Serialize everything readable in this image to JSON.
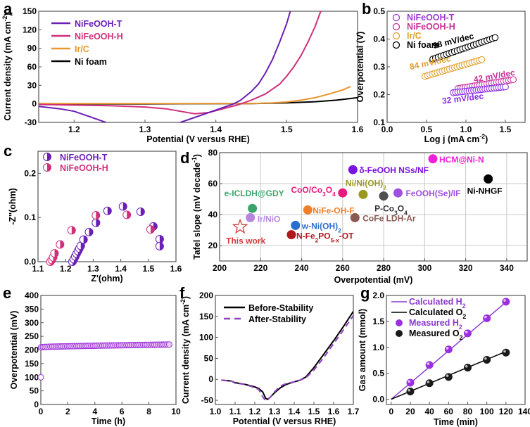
{
  "chart_data": [
    {
      "panel": "a",
      "type": "line",
      "xlabel": "Potential (V versus RHE)",
      "ylabel": "Current density (mA cm-2)",
      "xlim": [
        1.15,
        1.6
      ],
      "ylim": [
        -30,
        150
      ],
      "xticks": [
        "1.2",
        "1.3",
        "1.4",
        "1.5",
        "1.6"
      ],
      "yticks": [
        "-30",
        "0",
        "30",
        "60",
        "90",
        "120",
        "150"
      ],
      "legend": "top-left",
      "series": [
        {
          "name": "NiFeOOH-T",
          "color": "#6a1fb5",
          "x": [
            1.15,
            1.18,
            1.2,
            1.22,
            1.245,
            1.27,
            1.35,
            1.37,
            1.39,
            1.41,
            1.425,
            1.435,
            1.45,
            1.46,
            1.47,
            1.48,
            1.49,
            1.5,
            1.505
          ],
          "y": [
            -4,
            -8,
            -12,
            -20,
            -30,
            -45,
            -30,
            -22,
            -14,
            -6,
            0,
            6,
            20,
            32,
            50,
            72,
            100,
            130,
            150
          ]
        },
        {
          "name": "NiFeOOH-H",
          "color": "#d0307a",
          "x": [
            1.15,
            1.2,
            1.25,
            1.3,
            1.33,
            1.35,
            1.37,
            1.39,
            1.41,
            1.43,
            1.45,
            1.47,
            1.49,
            1.5,
            1.51,
            1.52,
            1.53,
            1.54,
            1.548
          ],
          "y": [
            -1,
            -2,
            -3,
            -5,
            -8,
            -12,
            -16,
            -14,
            -8,
            -2,
            6,
            16,
            32,
            45,
            60,
            78,
            100,
            125,
            150
          ]
        },
        {
          "name": "Ir/C",
          "color": "#e8962e",
          "x": [
            1.15,
            1.3,
            1.45,
            1.48,
            1.5,
            1.52,
            1.54,
            1.56,
            1.58,
            1.59
          ],
          "y": [
            0.5,
            0.5,
            0.5,
            1.5,
            3,
            6,
            10,
            16,
            23,
            28
          ]
        },
        {
          "name": "Ni foam",
          "color": "#000000",
          "x": [
            1.15,
            1.3,
            1.45,
            1.5,
            1.54,
            1.57,
            1.6
          ],
          "y": [
            0,
            0,
            0.5,
            1.5,
            3.5,
            6,
            10
          ]
        }
      ]
    },
    {
      "panel": "b",
      "type": "scatter",
      "xlabel": "Log j (mA cm-2)",
      "ylabel": "Overpotential (V)",
      "xlim": [
        0.0,
        1.75
      ],
      "ylim": [
        0.1,
        0.5
      ],
      "xticks": [
        "0.0",
        "0.5",
        "1.0",
        "1.5"
      ],
      "yticks": [
        "0.1",
        "0.2",
        "0.3",
        "0.4",
        "0.5"
      ],
      "legend": "top-left",
      "series": [
        {
          "name": "NiFeOOH-T",
          "color": "#8a2be2",
          "x_range": [
            0.84,
            1.5
          ],
          "y_range": [
            0.207,
            0.228
          ],
          "slope_label": "32 mV/dec"
        },
        {
          "name": "NiFeOOH-H",
          "color": "#c8309a",
          "x_range": [
            0.9,
            1.6
          ],
          "y_range": [
            0.222,
            0.254
          ],
          "slope_label": "42 mV/dec"
        },
        {
          "name": "Ir/C",
          "color": "#e0a030",
          "x_range": [
            0.48,
            1.2
          ],
          "y_range": [
            0.266,
            0.326
          ],
          "slope_label": "84 mV/dec"
        },
        {
          "name": "Ni foam",
          "color": "#000000",
          "x_range": [
            0.58,
            1.37
          ],
          "y_range": [
            0.328,
            0.405
          ],
          "slope_label": "98 mV/dec"
        }
      ]
    },
    {
      "panel": "c",
      "type": "scatter",
      "xlabel": "Z'(ohm)",
      "ylabel": "-Z''(ohm)",
      "xlim": [
        1.1,
        1.6
      ],
      "ylim": [
        0.0,
        0.25
      ],
      "xticks": [
        "1.1",
        "1.2",
        "1.3",
        "1.4",
        "1.5",
        "1.6"
      ],
      "yticks": [
        "0.0",
        "0.1",
        "0.2"
      ],
      "legend": "top-left",
      "series": [
        {
          "name": "NiFeOOH-T",
          "color": "#6a1fb5",
          "x": [
            1.225,
            1.23,
            1.235,
            1.24,
            1.245,
            1.25,
            1.255,
            1.265,
            1.285,
            1.31,
            1.352,
            1.408,
            1.472,
            1.518,
            1.541,
            1.541
          ],
          "y": [
            0.0,
            0.006,
            0.012,
            0.018,
            0.024,
            0.03,
            0.036,
            0.05,
            0.067,
            0.088,
            0.115,
            0.125,
            0.113,
            0.08,
            0.051,
            0.035
          ]
        },
        {
          "name": "NiFeOOH-H",
          "color": "#d0307a",
          "x": [
            1.145,
            1.15,
            1.155,
            1.16,
            1.18,
            1.222,
            1.31,
            1.422,
            1.508
          ],
          "y": [
            0.0,
            0.004,
            0.01,
            0.019,
            0.039,
            0.071,
            0.105,
            0.106,
            0.073
          ]
        }
      ]
    },
    {
      "panel": "d",
      "type": "scatter",
      "xlabel": "Overpotential (mV)",
      "ylabel": "Tafel slope (mV decade-1)",
      "xlim": [
        200,
        350
      ],
      "ylim": [
        10,
        80
      ],
      "xticks": [
        "200",
        "220",
        "240",
        "260",
        "280",
        "300",
        "320",
        "340"
      ],
      "yticks": [
        "20",
        "40",
        "60",
        "80"
      ],
      "grid": true,
      "points": [
        {
          "label": "This work",
          "x": 210,
          "y": 32,
          "color": "#d63a3a",
          "marker": "star"
        },
        {
          "label": "e-ICLDH@GDY",
          "x": 216,
          "y": 44,
          "color": "#3aa56a"
        },
        {
          "label": "Ir/NiO",
          "x": 215,
          "y": 38,
          "color": "#b787e0"
        },
        {
          "label": "N-Fe2PO5-x-OT",
          "x": 235,
          "y": 27,
          "color": "#b0171f"
        },
        {
          "label": "w-Ni(OH)2",
          "x": 237,
          "y": 33,
          "color": "#2a6fd0"
        },
        {
          "label": "NiFe-OH-F",
          "x": 243,
          "y": 43,
          "color": "#f07f2a"
        },
        {
          "label": "CoO/Co3O4",
          "x": 260,
          "y": 54,
          "color": "#e8197f"
        },
        {
          "label": "δ-FeOOH NSs/NF",
          "x": 265,
          "y": 69,
          "color": "#7a12e0"
        },
        {
          "label": "CoFe LDH-Ar",
          "x": 266,
          "y": 38,
          "color": "#8a5a52"
        },
        {
          "label": "Ni/Ni(OH)2",
          "x": 270,
          "y": 53,
          "color": "#9a9a20"
        },
        {
          "label": "P-Co3O4",
          "x": 280,
          "y": 52,
          "color": "#505050"
        },
        {
          "label": "FeOOH(Se)/IF",
          "x": 287,
          "y": 54,
          "color": "#a050e0"
        },
        {
          "label": "HCM@Ni-N",
          "x": 304,
          "y": 76,
          "color": "#f020d8"
        },
        {
          "label": "Ni-NHGF",
          "x": 331,
          "y": 63,
          "color": "#000000"
        }
      ]
    },
    {
      "panel": "e",
      "type": "scatter",
      "xlabel": "Time (h)",
      "ylabel": "Overpotential (mV)",
      "xlim": [
        0,
        10
      ],
      "ylim": [
        0,
        400
      ],
      "xticks": [
        "0",
        "2",
        "4",
        "6",
        "8",
        "10"
      ],
      "yticks": [
        "0",
        "50",
        "100",
        "150",
        "200",
        "250",
        "300",
        "350",
        "400"
      ],
      "series": [
        {
          "name": "overpotential",
          "color": "#9b30d9",
          "start": [
            0,
            100
          ],
          "steady_from": [
            0.02,
            210
          ],
          "steady_to": [
            9.5,
            220
          ]
        }
      ]
    },
    {
      "panel": "f",
      "type": "line",
      "xlabel": "Potential (V versus RHE)",
      "ylabel": "Current density (mA cm-2)",
      "xlim": [
        1.0,
        1.7
      ],
      "ylim": [
        -60,
        200
      ],
      "xticks": [
        "1.0",
        "1.1",
        "1.2",
        "1.3",
        "1.4",
        "1.5",
        "1.6",
        "1.7"
      ],
      "yticks": [
        "-50",
        "0",
        "50",
        "100",
        "150",
        "200"
      ],
      "legend": "top-left",
      "series": [
        {
          "name": "Before-Stability",
          "color": "#000000",
          "dash": false,
          "x": [
            1.03,
            1.08,
            1.1,
            1.15,
            1.2,
            1.22,
            1.24,
            1.255,
            1.265,
            1.28,
            1.3,
            1.33,
            1.36,
            1.4,
            1.43,
            1.46,
            1.5,
            1.55,
            1.6,
            1.65,
            1.7
          ],
          "y": [
            -2,
            -4,
            -8,
            -12,
            -18,
            -22,
            -30,
            -45,
            -48,
            -42,
            -32,
            -20,
            -12,
            -6,
            -2,
            6,
            28,
            60,
            92,
            126,
            162
          ]
        },
        {
          "name": "After-Stability",
          "color": "#9040c0",
          "dash": true,
          "x": [
            1.03,
            1.08,
            1.1,
            1.15,
            1.2,
            1.22,
            1.235,
            1.25,
            1.262,
            1.28,
            1.3,
            1.33,
            1.36,
            1.4,
            1.43,
            1.46,
            1.5,
            1.55,
            1.6,
            1.65,
            1.7
          ],
          "y": [
            -2,
            -4,
            -9,
            -12,
            -20,
            -24,
            -38,
            -48,
            -50,
            -42,
            -30,
            -16,
            -10,
            -6,
            -2,
            4,
            22,
            52,
            85,
            118,
            152
          ]
        }
      ]
    },
    {
      "panel": "g",
      "type": "line",
      "xlabel": "Time (min)",
      "ylabel": "Gas amount (mmol)",
      "xlim": [
        -5,
        140
      ],
      "ylim": [
        -0.1,
        2.0
      ],
      "xticks": [
        "0",
        "20",
        "40",
        "60",
        "80",
        "100",
        "120",
        "140"
      ],
      "yticks": [
        "0.0",
        "0.5",
        "1.0",
        "1.5",
        "2.0"
      ],
      "legend": "top-left",
      "series": [
        {
          "name": "Calculated H2",
          "color": "#8a3ad0",
          "kind": "line",
          "x": [
            0,
            120
          ],
          "y": [
            0,
            1.87
          ]
        },
        {
          "name": "Calculated O2",
          "color": "#000000",
          "kind": "line",
          "x": [
            0,
            120
          ],
          "y": [
            0,
            0.92
          ]
        },
        {
          "name": "Measured H2",
          "color": "#9b30e0",
          "kind": "points",
          "x": [
            20,
            40,
            60,
            80,
            100,
            120
          ],
          "y": [
            0.32,
            0.66,
            0.96,
            1.27,
            1.56,
            1.88
          ]
        },
        {
          "name": "Measured O2",
          "color": "#1a1a1a",
          "kind": "points",
          "x": [
            20,
            40,
            60,
            80,
            100,
            120
          ],
          "y": [
            0.15,
            0.31,
            0.43,
            0.61,
            0.76,
            0.9
          ]
        }
      ]
    }
  ],
  "panels": {
    "a": {
      "label": "a",
      "legend": [
        "NiFeOOH-T",
        "NiFeOOH-H",
        "Ir/C",
        "Ni foam"
      ]
    },
    "b": {
      "label": "b",
      "legend": [
        "NiFeOOH-T",
        "NiFeOOH-H",
        "Ir/C",
        "Ni foam"
      ],
      "annotations": [
        "98 mV/dec",
        "84 mV/dec",
        "42 mV/dec",
        "32 mV/dec"
      ]
    },
    "c": {
      "label": "c",
      "legend": [
        "NiFeOOH-T",
        "NiFeOOH-H"
      ]
    },
    "d": {
      "label": "d"
    },
    "e": {
      "label": "e"
    },
    "f": {
      "label": "f",
      "legend": [
        "Before-Stability",
        "After-Stability"
      ]
    },
    "g": {
      "label": "g",
      "legend": [
        "Calculated H2",
        "Calculated O2",
        "Measured H2",
        "Measured O2"
      ]
    }
  }
}
